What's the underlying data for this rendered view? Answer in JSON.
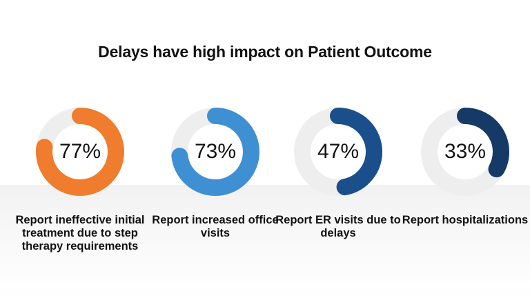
{
  "title": "Delays have high impact on Patient Outcome",
  "chart_data": {
    "type": "donut",
    "title": "Delays have high impact on Patient Outcome",
    "series": [
      {
        "value": 77,
        "display": "77%",
        "label": "Report ineffective initial treatment due to step therapy requirements",
        "color": "#ef7d2d"
      },
      {
        "value": 73,
        "display": "73%",
        "label": "Report increased office visits",
        "color": "#3f8fd3"
      },
      {
        "value": 47,
        "display": "47%",
        "label": "Report ER visits due to delays",
        "color": "#1b4f8c"
      },
      {
        "value": 33,
        "display": "33%",
        "label": "Report hospitalizations",
        "color": "#163a66"
      }
    ],
    "track_color": "#eeeeee",
    "max": 100
  }
}
